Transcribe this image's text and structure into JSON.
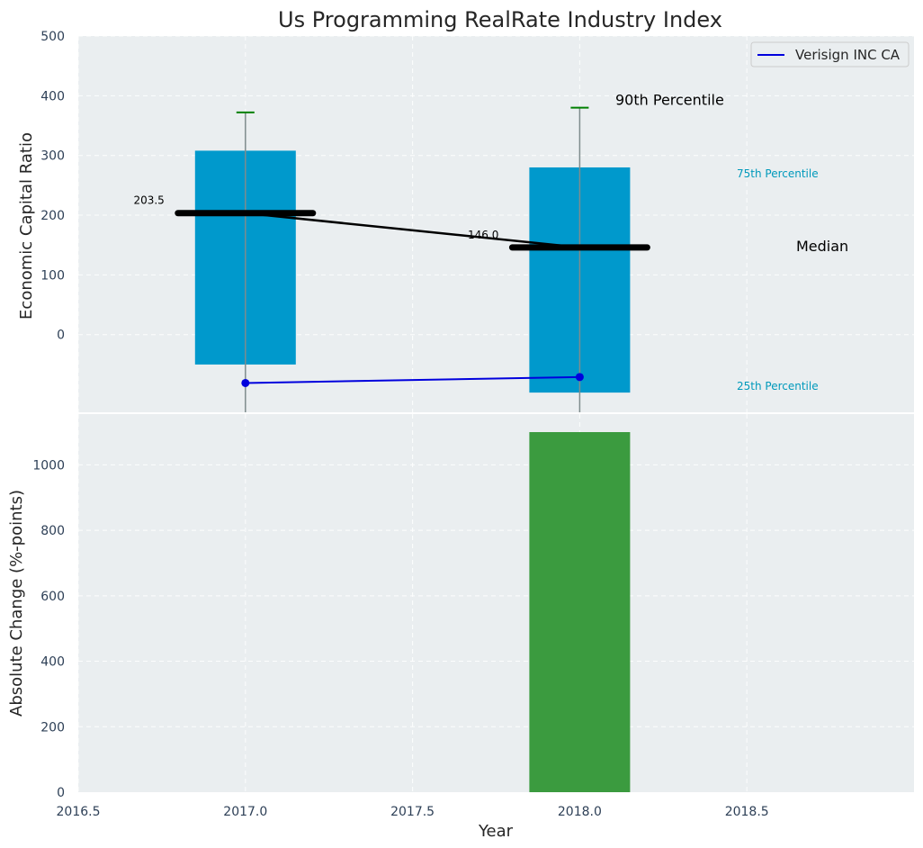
{
  "chart_data": {
    "type": "bar",
    "title": "Us Programming RealRate Industry Index",
    "xlabel": "Year",
    "x_ticks": [
      "2016.5",
      "2017.0",
      "2017.5",
      "2018.0",
      "2018.5"
    ],
    "xlim": [
      2016.5,
      2019.0
    ],
    "top": {
      "ylabel": "Economic Capital Ratio",
      "ylim": [
        -130,
        500
      ],
      "y_ticks": [
        0,
        100,
        200,
        300,
        400,
        500
      ],
      "categories": [
        2017.0,
        2018.0
      ],
      "bar_bottom": [
        -50,
        -97
      ],
      "bar_top": [
        308,
        280
      ],
      "p10": [
        -130,
        -130
      ],
      "p90": [
        372,
        380
      ],
      "median": [
        203.5,
        146.0
      ],
      "median_labels": [
        "203.5",
        "146.0"
      ],
      "company_series": {
        "name": "Verisign INC CA",
        "values": [
          -81,
          -71
        ]
      },
      "annotations": {
        "p90": "90th Percentile",
        "p75": "75th Percentile",
        "median": "Median",
        "p25": "25th Percentile"
      },
      "legend": "top-right"
    },
    "bottom": {
      "ylabel": "Absolute Change (%-points)",
      "ylim": [
        0,
        1100
      ],
      "y_ticks": [
        0,
        200,
        400,
        600,
        800,
        1000
      ],
      "categories": [
        2018.0
      ],
      "values": [
        1100
      ]
    },
    "colors": {
      "box": "#0099cc",
      "change_bar": "#3b9b3f",
      "median": "#000000",
      "whisker_cap": "#008000",
      "company": "#0000dd",
      "annotation_blue": "#0099bb",
      "background": "#eaeef0"
    }
  }
}
